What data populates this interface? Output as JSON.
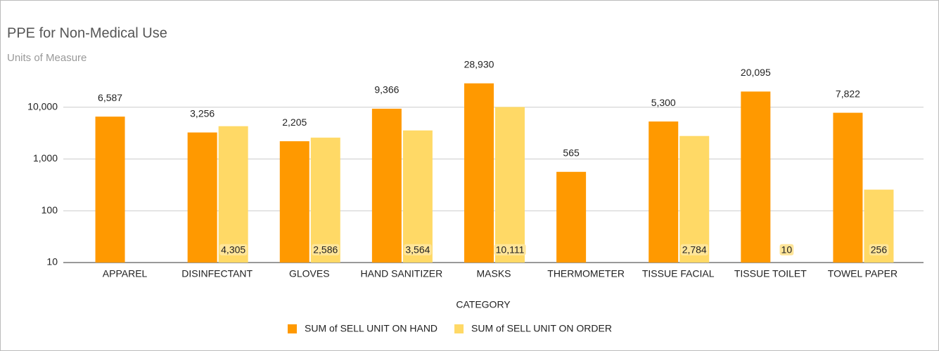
{
  "chart_data": {
    "type": "bar",
    "title": "PPE for Non-Medical Use",
    "subtitle": "Units of Measure",
    "x_label": "CATEGORY",
    "categories": [
      "APPAREL",
      "DISINFECTANT",
      "GLOVES",
      "HAND SANITIZER",
      "MASKS",
      "THERMOMETER",
      "TISSUE FACIAL",
      "TISSUE TOILET",
      "TOWEL PAPER"
    ],
    "series": [
      {
        "name": "SUM of SELL UNIT ON HAND",
        "color": "#ff9900",
        "values": [
          6587,
          3256,
          2205,
          9366,
          28930,
          565,
          5300,
          20095,
          7822
        ],
        "value_labels": [
          "6,587",
          "3,256",
          "2,205",
          "9,366",
          "28,930",
          "565",
          "5,300",
          "20,095",
          "7,822"
        ]
      },
      {
        "name": "SUM of SELL UNIT ON ORDER",
        "color": "#ffd966",
        "values": [
          null,
          4305,
          2586,
          3564,
          10111,
          null,
          2784,
          10,
          256
        ],
        "value_labels": [
          null,
          "4,305",
          "2,586",
          "3,564",
          "10,111",
          null,
          "2,784",
          "10",
          "256"
        ]
      }
    ],
    "log_scale": true,
    "ylim": [
      10,
      100000
    ],
    "yticks": [
      10,
      100,
      {
        "value": 1000,
        "label": "1,000"
      },
      {
        "value": 10000,
        "label": "10,000"
      }
    ],
    "grid": true,
    "legend": "bottom"
  }
}
